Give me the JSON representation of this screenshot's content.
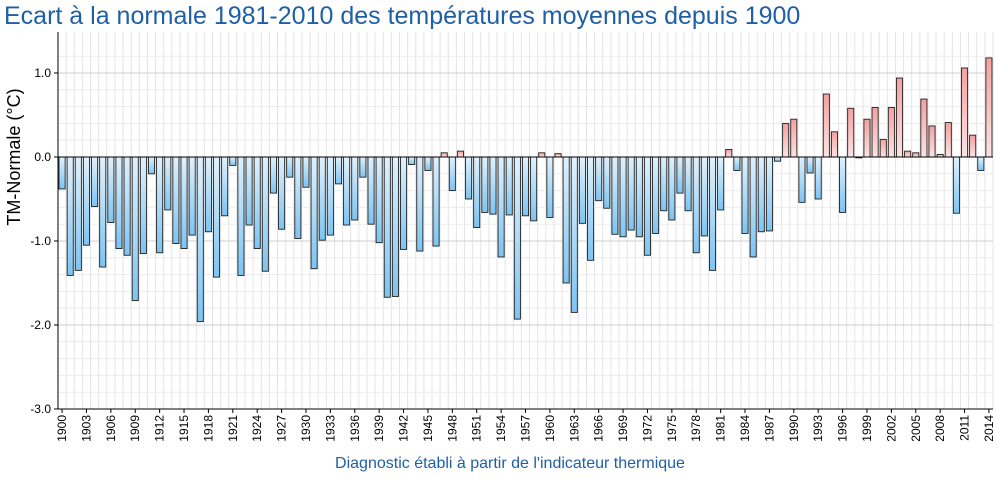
{
  "chart_data": {
    "type": "bar",
    "title": "Ecart à la normale 1981-2010 des températures moyennes depuis 1900",
    "xlabel": "Diagnostic établi à partir de l'indicateur thermique",
    "ylabel": "TM-Normale (°C)",
    "ylim": [
      -3.0,
      1.2
    ],
    "yticks": [
      {
        "value": 1.0,
        "label": "1.0"
      },
      {
        "value": 0.0,
        "label": "0.0"
      },
      {
        "value": -1.0,
        "label": "-1.0"
      },
      {
        "value": -2.0,
        "label": "-2.0"
      },
      {
        "value": -3.0,
        "label": "-3.0"
      }
    ],
    "xtick_labels": [
      "1900",
      "1903",
      "1906",
      "1909",
      "1912",
      "1915",
      "1918",
      "1921",
      "1924",
      "1927",
      "1930",
      "1933",
      "1936",
      "1939",
      "1942",
      "1945",
      "1948",
      "1951",
      "1954",
      "1957",
      "1960",
      "1963",
      "1966",
      "1969",
      "1972",
      "1975",
      "1978",
      "1981",
      "1984",
      "1987",
      "1990",
      "1993",
      "1996",
      "1999",
      "2002",
      "2005",
      "2008",
      "2011",
      "2014"
    ],
    "grid": true,
    "colors": {
      "positive_fill": "#f4a0a0",
      "negative_fill": "#7cc4f2",
      "title": "#1f5fa6"
    },
    "x_start": 1900,
    "x_end": 2014,
    "values": [
      -0.38,
      -1.41,
      -1.35,
      -1.05,
      -0.59,
      -1.31,
      -0.78,
      -1.09,
      -1.17,
      -1.71,
      -1.15,
      -0.2,
      -1.14,
      -0.63,
      -1.03,
      -1.09,
      -0.93,
      -1.96,
      -0.89,
      -1.43,
      -0.7,
      -0.1,
      -1.41,
      -0.81,
      -1.09,
      -1.36,
      -0.43,
      -0.86,
      -0.24,
      -0.97,
      -0.36,
      -1.33,
      -0.99,
      -0.93,
      -0.32,
      -0.81,
      -0.75,
      -0.24,
      -0.8,
      -1.02,
      -1.67,
      -1.66,
      -1.1,
      -0.09,
      -1.12,
      -0.16,
      -1.06,
      0.05,
      -0.4,
      0.07,
      -0.5,
      -0.84,
      -0.66,
      -0.68,
      -1.19,
      -0.69,
      -1.93,
      -0.7,
      -0.76,
      0.05,
      -0.72,
      0.04,
      -1.5,
      -1.85,
      -0.79,
      -1.23,
      -0.52,
      -0.61,
      -0.92,
      -0.95,
      -0.87,
      -0.95,
      -1.17,
      -0.91,
      -0.64,
      -0.75,
      -0.43,
      -0.64,
      -1.14,
      -0.94,
      -1.35,
      -0.63,
      0.09,
      -0.16,
      -0.91,
      -1.19,
      -0.89,
      -0.88,
      -0.05,
      0.4,
      0.45,
      -0.54,
      -0.19,
      -0.5,
      0.75,
      0.3,
      -0.66,
      0.58,
      -0.01,
      0.45,
      0.59,
      0.21,
      0.59,
      0.94,
      0.07,
      0.05,
      0.69,
      0.37,
      0.03,
      0.41,
      -0.67,
      1.06,
      0.26,
      -0.16,
      1.18
    ]
  }
}
